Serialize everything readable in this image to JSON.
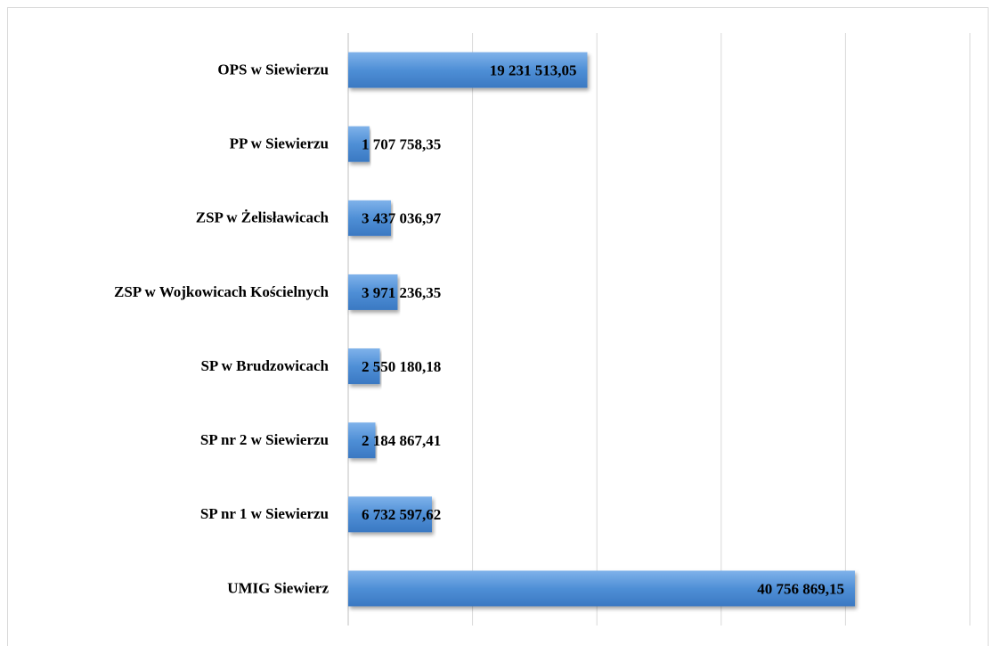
{
  "chart_data": {
    "type": "bar",
    "orientation": "horizontal",
    "categories": [
      "OPS w Siewierzu",
      "PP w Siewierzu",
      "ZSP w Żelisławicach",
      "ZSP w Wojkowicach Kościelnych",
      "SP w Brudzowicach",
      "SP nr 2 w Siewierzu",
      "SP nr 1 w Siewierzu",
      "UMIG Siewierz"
    ],
    "values": [
      19231513.05,
      1707758.35,
      3437036.97,
      3971236.35,
      2550180.18,
      2184867.41,
      6732597.62,
      40756869.15
    ],
    "value_labels": [
      "19 231 513,05",
      "1 707 758,35",
      "3 437 036,97",
      "3 971 236,35",
      "2 550 180,18",
      "2 184 867,41",
      "6 732 597,62",
      "40 756 869,15"
    ],
    "color": "#4f8fd6",
    "xlim": [
      0,
      50000000
    ],
    "xticks": [
      0,
      10000000,
      20000000,
      30000000,
      40000000,
      50000000
    ],
    "grid": true
  }
}
